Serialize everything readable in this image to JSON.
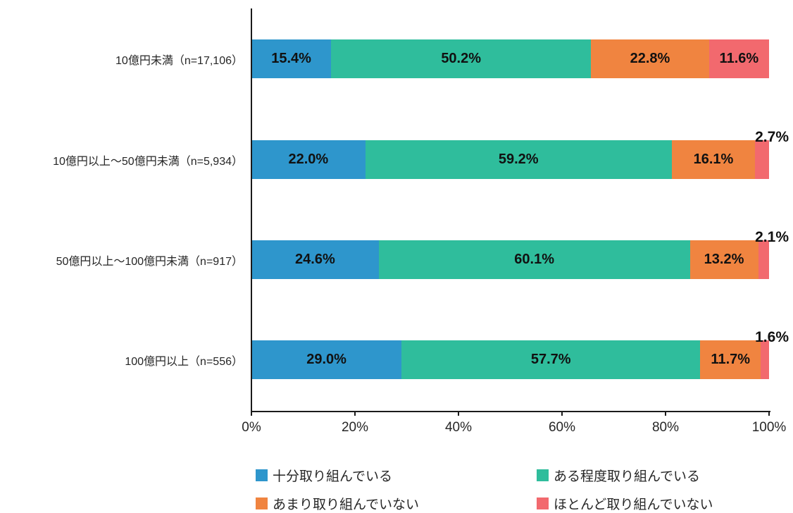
{
  "chart_data": {
    "type": "bar",
    "orientation": "horizontal_stacked",
    "title": "",
    "xlabel": "",
    "ylabel": "",
    "categories": [
      "10億円未満（n=17,106）",
      "10億円以上～50億円未満（n=5,934）",
      "50億円以上～100億円未満（n=917）",
      "100億円以上（n=556）"
    ],
    "series": [
      {
        "name": "十分取り組んでいる",
        "color": "#2E96CC",
        "values": [
          15.4,
          22.0,
          24.6,
          29.0
        ]
      },
      {
        "name": "ある程度取り組んでいる",
        "color": "#2FBD9C",
        "values": [
          50.2,
          59.2,
          60.1,
          57.7
        ]
      },
      {
        "name": "あまり取り組んでいない",
        "color": "#F08440",
        "values": [
          22.8,
          16.1,
          13.2,
          11.7
        ]
      },
      {
        "name": "ほとんど取り組んでいない",
        "color": "#F2696E",
        "values": [
          11.6,
          2.7,
          2.1,
          1.6
        ]
      }
    ],
    "value_label_suffix": "%",
    "outside_label_threshold": 5,
    "x_axis": {
      "min": 0,
      "max": 100,
      "ticks": [
        "0%",
        "20%",
        "40%",
        "60%",
        "80%",
        "100%"
      ]
    },
    "grid": false,
    "legend_position": "bottom",
    "legend_columns": 2
  }
}
